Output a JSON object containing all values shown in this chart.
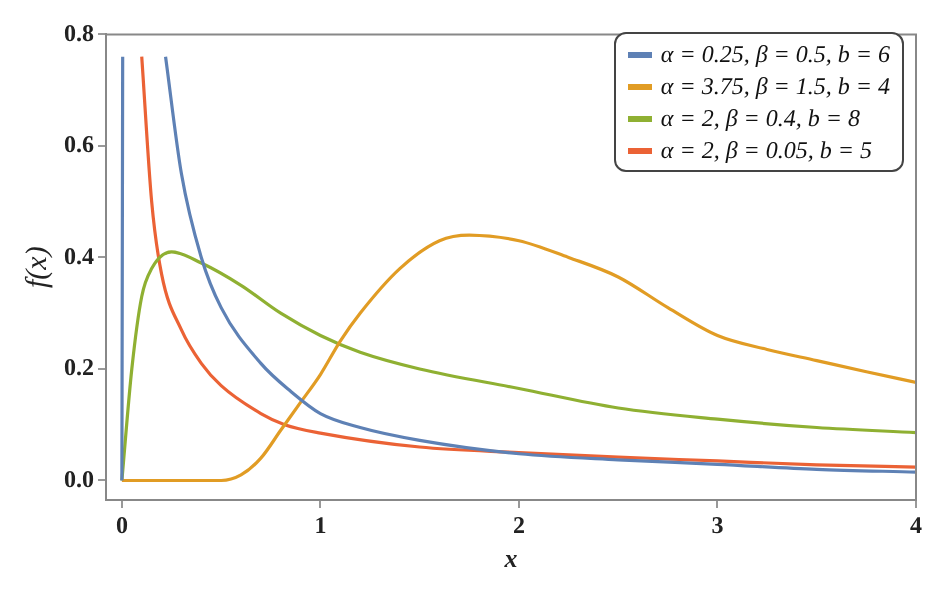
{
  "chart_data": {
    "type": "line",
    "xlabel": "x",
    "ylabel": "f(x)",
    "xlim": [
      -0.08,
      4
    ],
    "ylim": [
      -0.035,
      0.8
    ],
    "xticks": [
      0,
      1,
      2,
      3,
      4
    ],
    "yticks": [
      {
        "value": 0,
        "label": "0.0"
      },
      0.2,
      0.4,
      0.6,
      0.8
    ],
    "grid": false,
    "legend": "top right",
    "marker": "none",
    "line_style": "solid",
    "series": [
      {
        "name": "α = 0.25, β = 0.5, b = 6",
        "color": "#5e81b5",
        "x": [
          0,
          0.004,
          0.1,
          0.22,
          0.3,
          0.4,
          0.5,
          0.7,
          0.85,
          1,
          1.2,
          1.5,
          2,
          2.5,
          3,
          3.5,
          4
        ],
        "values": [
          0,
          0.76,
          null,
          0.76,
          0.55,
          0.4,
          0.31,
          0.21,
          0.16,
          0.12,
          0.095,
          0.072,
          0.048,
          0.037,
          0.029,
          0.02,
          0.015
        ]
      },
      {
        "name": "α = 3.75, β = 1.5, b = 4",
        "color": "#e19c24",
        "x": [
          0,
          0.5,
          0.6,
          0.7,
          0.8,
          0.9,
          1,
          1.1,
          1.2,
          1.4,
          1.6,
          1.75,
          2,
          2.25,
          2.5,
          2.75,
          3,
          3.25,
          3.5,
          3.75,
          4
        ],
        "values": [
          0,
          0,
          0.01,
          0.04,
          0.09,
          0.14,
          0.19,
          0.25,
          0.3,
          0.38,
          0.43,
          0.44,
          0.43,
          0.4,
          0.365,
          0.31,
          0.26,
          0.235,
          0.215,
          0.195,
          0.176
        ]
      },
      {
        "name": "α = 2, β = 0.4, b = 8",
        "color": "#8fb032",
        "x": [
          0,
          0.05,
          0.1,
          0.15,
          0.25,
          0.4,
          0.6,
          0.8,
          1,
          1.2,
          1.5,
          2,
          2.5,
          3,
          3.5,
          4
        ],
        "values": [
          0,
          0.2,
          0.33,
          0.38,
          0.41,
          0.39,
          0.35,
          0.3,
          0.26,
          0.23,
          0.2,
          0.165,
          0.13,
          0.11,
          0.095,
          0.086
        ]
      },
      {
        "name": "α = 2, β = 0.05, b = 5",
        "color": "#eb6235",
        "x": [
          0.1,
          0.15,
          0.2,
          0.3,
          0.4,
          0.5,
          0.7,
          0.82,
          1,
          1.5,
          2,
          2.5,
          3,
          3.5,
          4
        ],
        "values": [
          0.76,
          0.5,
          0.37,
          0.27,
          0.21,
          0.17,
          0.12,
          0.1,
          0.085,
          0.06,
          0.05,
          0.042,
          0.035,
          0.028,
          0.024
        ]
      }
    ]
  }
}
